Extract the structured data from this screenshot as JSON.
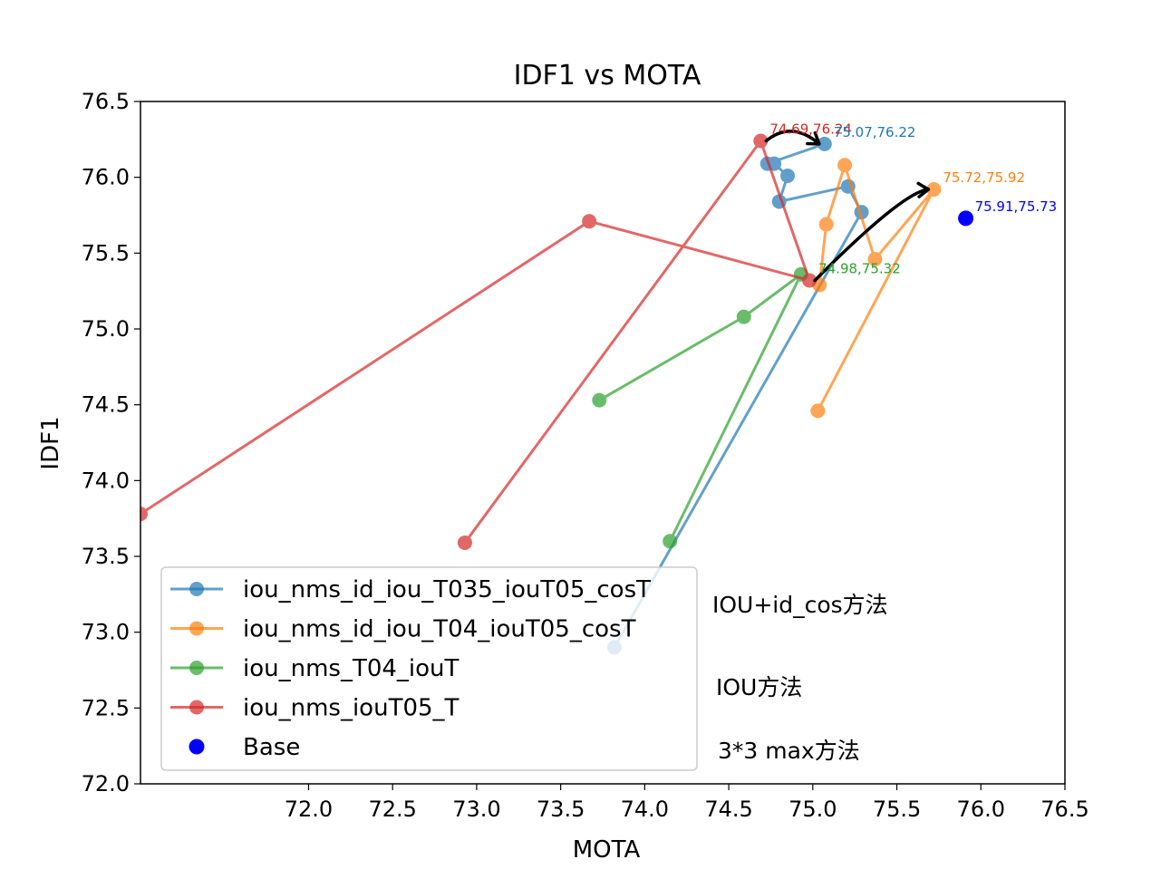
{
  "chart_data": {
    "type": "line",
    "title": "IDF1 vs MOTA",
    "xlabel": "MOTA",
    "ylabel": "IDF1",
    "xlim": [
      71.0,
      76.5
    ],
    "ylim": [
      72.0,
      76.5
    ],
    "x_ticks": [
      "72.0",
      "72.5",
      "73.0",
      "73.5",
      "74.0",
      "74.5",
      "75.0",
      "75.5",
      "76.0",
      "76.5"
    ],
    "x_tick_values": [
      72.0,
      72.5,
      73.0,
      73.5,
      74.0,
      74.5,
      75.0,
      75.5,
      76.0,
      76.5
    ],
    "y_ticks": [
      "72.0",
      "72.5",
      "73.0",
      "73.5",
      "74.0",
      "74.5",
      "75.0",
      "75.5",
      "76.0",
      "76.5"
    ],
    "y_tick_values": [
      72.0,
      72.5,
      73.0,
      73.5,
      74.0,
      74.5,
      75.0,
      75.5,
      76.0,
      76.5
    ],
    "grid": false,
    "legend_position": "lower-left",
    "series": [
      {
        "name": "iou_nms_id_iou_T035_iouT05_cosT",
        "color": "#1f77b4",
        "x": [
          73.82,
          75.29,
          75.21,
          74.8,
          74.85,
          74.77,
          74.73,
          75.07
        ],
        "y": [
          72.9,
          75.77,
          75.94,
          75.84,
          76.01,
          76.09,
          76.09,
          76.22
        ]
      },
      {
        "name": "iou_nms_id_iou_T04_iouT05_cosT",
        "color": "#ff7f0e",
        "x": [
          75.03,
          75.72,
          75.37,
          75.19,
          75.08,
          75.04
        ],
        "y": [
          74.46,
          75.92,
          75.46,
          76.08,
          75.69,
          75.29
        ]
      },
      {
        "name": "iou_nms_T04_iouT",
        "color": "#2ca02c",
        "x": [
          74.15,
          74.93,
          74.59,
          73.73
        ],
        "y": [
          73.6,
          75.36,
          75.08,
          74.53
        ]
      },
      {
        "name": "iou_nms_iouT05_T",
        "color": "#d62728",
        "x": [
          71.0,
          73.67,
          74.98,
          74.69,
          72.93
        ],
        "y": [
          73.78,
          75.71,
          75.32,
          76.24,
          73.59
        ]
      }
    ],
    "base_point": {
      "name": "Base",
      "color": "#0000ff",
      "x": 75.91,
      "y": 75.73
    },
    "annotations": [
      {
        "text": "74.69,76.24",
        "x": 74.69,
        "y": 76.24,
        "color": "#d62728"
      },
      {
        "text": "75.07,76.22",
        "x": 75.07,
        "y": 76.22,
        "color": "#1f77b4"
      },
      {
        "text": "75.72,75.92",
        "x": 75.72,
        "y": 75.92,
        "color": "#ff7f0e"
      },
      {
        "text": "75.91,75.73",
        "x": 75.91,
        "y": 75.73,
        "color": "#0000ff"
      },
      {
        "text": "74.98,75.32",
        "x": 74.98,
        "y": 75.32,
        "color": "#2ca02c"
      }
    ],
    "arrows": [
      {
        "from": [
          74.69,
          76.24
        ],
        "to": [
          75.07,
          76.22
        ]
      },
      {
        "from": [
          74.98,
          75.32
        ],
        "to": [
          75.72,
          75.92
        ]
      }
    ],
    "notes": [
      "IOU+id_cos方法",
      "IOU方法",
      "3*3 max方法"
    ]
  }
}
